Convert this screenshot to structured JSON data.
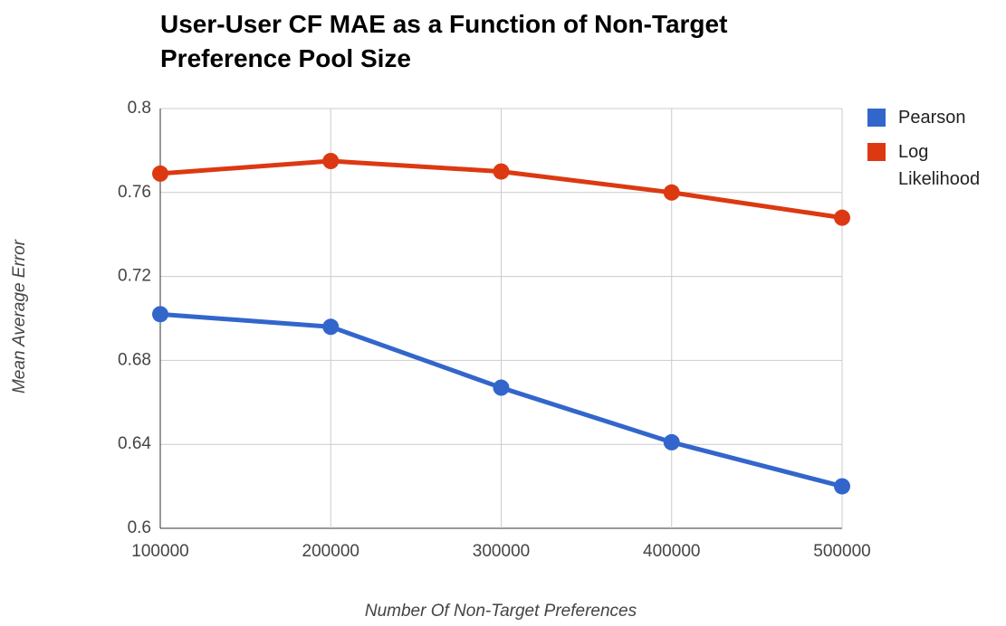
{
  "chart_data": {
    "type": "line",
    "title": "User-User CF MAE as a Function of Non-Target Preference Pool Size",
    "x_label": "Number Of Non-Target Preferences",
    "y_label": "Mean Average Error",
    "x": [
      100000,
      200000,
      300000,
      400000,
      500000
    ],
    "series": [
      {
        "name": "Pearson",
        "color": "#3366cc",
        "values": [
          0.702,
          0.696,
          0.667,
          0.641,
          0.62
        ]
      },
      {
        "name": "Log Likelihood",
        "color": "#dc3912",
        "values": [
          0.769,
          0.775,
          0.77,
          0.76,
          0.748
        ]
      }
    ],
    "xlim": [
      100000,
      500000
    ],
    "xticks": [
      100000,
      200000,
      300000,
      400000,
      500000
    ],
    "ylim": [
      0.6,
      0.8
    ],
    "yticks": [
      0.6,
      0.64,
      0.68,
      0.72,
      0.76,
      0.8
    ],
    "grid": true,
    "legend": "right"
  }
}
